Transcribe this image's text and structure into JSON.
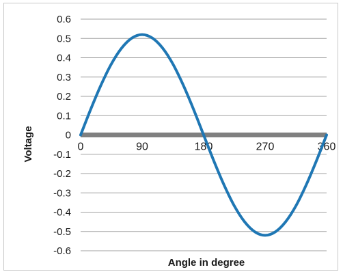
{
  "chart_data": {
    "type": "line",
    "title": "",
    "xlabel": "Angle in degree",
    "ylabel": "Voltage",
    "xlim": [
      0,
      360
    ],
    "ylim": [
      -0.6,
      0.6
    ],
    "x_ticks": [
      "0",
      "90",
      "180",
      "270",
      "360"
    ],
    "y_ticks": [
      "0.6",
      "0.5",
      "0.4",
      "0.3",
      "0.2",
      "0.1",
      "0",
      "-0.1",
      "-0.2",
      "-0.3",
      "-0.4",
      "-0.5",
      "-0.6"
    ],
    "grid": true,
    "legend": "none",
    "series": [
      {
        "color": "#1f77b4",
        "x": [
          0,
          15,
          30,
          45,
          60,
          75,
          90,
          105,
          120,
          135,
          150,
          165,
          180,
          195,
          210,
          225,
          240,
          255,
          270,
          285,
          300,
          315,
          330,
          345,
          360
        ],
        "values": [
          0,
          0.135,
          0.26,
          0.368,
          0.45,
          0.502,
          0.52,
          0.502,
          0.45,
          0.368,
          0.26,
          0.135,
          0,
          -0.135,
          -0.26,
          -0.368,
          -0.45,
          -0.502,
          -0.52,
          -0.502,
          -0.45,
          -0.368,
          -0.26,
          -0.135,
          0
        ]
      }
    ],
    "colors": {
      "series": "#1f77b4",
      "gridline": "#a0a0a0",
      "zero_axis": "#808080",
      "frame": "#c8c8c8"
    }
  }
}
